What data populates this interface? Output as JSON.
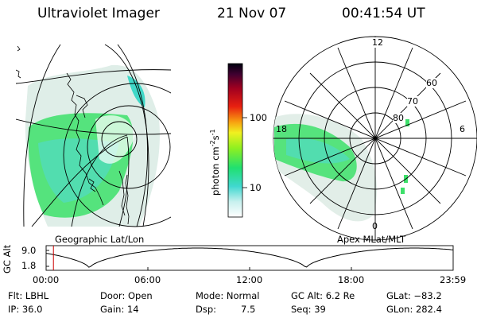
{
  "header": {
    "instrument": "Ultraviolet Imager",
    "date": "21 Nov 07",
    "time": "00:41:54 UT"
  },
  "panels": {
    "geo_label": "Geographic Lat/Lon",
    "apex_label": "Apex MLat/MLT",
    "polar_ticks": {
      "t12": "12",
      "t18": "18",
      "t6": "6",
      "t0": "0"
    },
    "lat_rings": {
      "r60": "60",
      "r70": "70",
      "r80": "80"
    }
  },
  "colorbar": {
    "unit_label": "photon cm",
    "unit_exp1": "-2",
    "unit_mid": "s",
    "unit_exp2": "-1",
    "tick_100": "100",
    "tick_10": "10"
  },
  "altitude_plot": {
    "axis_label": "GC Alt",
    "y_max": "9.0",
    "y_min": "1.8",
    "x_ticks": [
      "00:00",
      "06:00",
      "12:00",
      "18:00",
      "23:59"
    ],
    "marker_fraction": 0.018
  },
  "info": {
    "flt": "Flt: LBHL",
    "ip": "IP: 36.0",
    "door": "Door: Open",
    "gain": "Gain: 14",
    "mode": "Mode: Normal",
    "dsp_label": "Dsp:",
    "dsp_value": "7.5",
    "gc_alt": "GC Alt: 6.2 Re",
    "seq": "Seq: 39",
    "glat": "GLat: −83.2",
    "glon": "GLon: 282.4"
  }
}
